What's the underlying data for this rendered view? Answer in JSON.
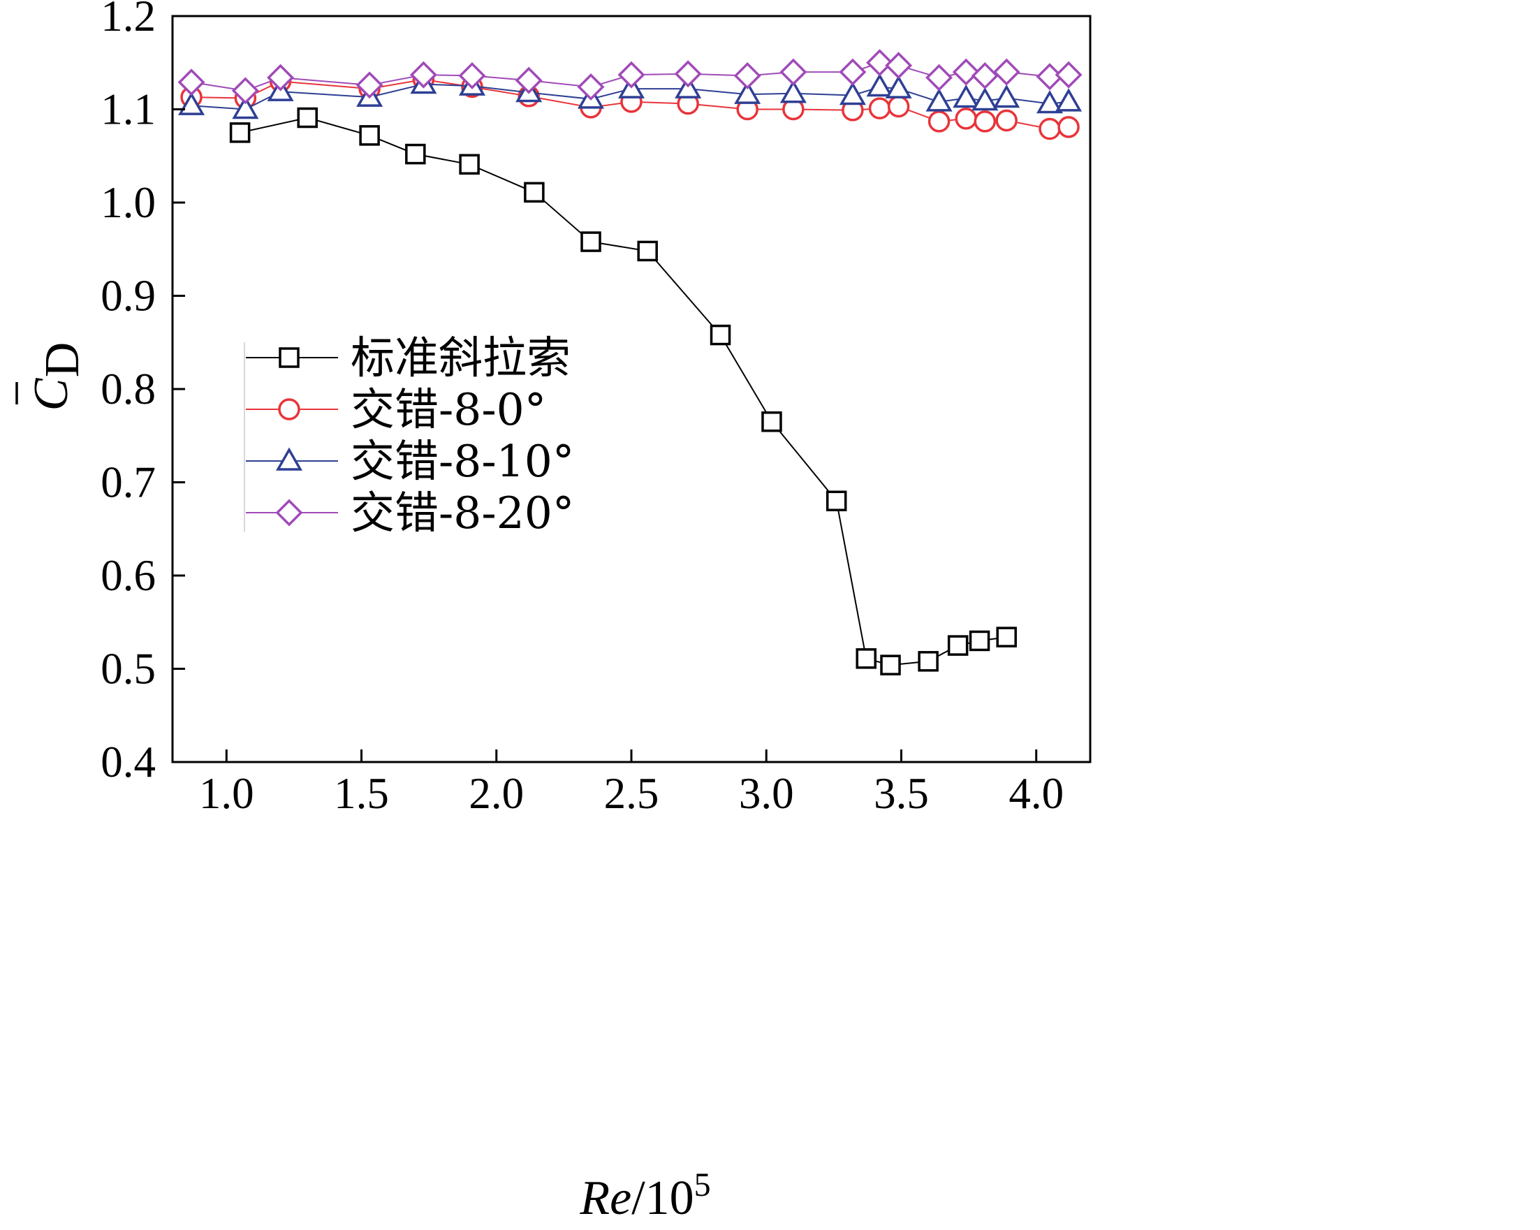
{
  "chart_data": {
    "type": "line",
    "xlabel": {
      "italic": "Re",
      "base": "/10",
      "sup": "5"
    },
    "ylabel": {
      "main": "C",
      "sub": "D"
    },
    "xlim": [
      0.8,
      4.2
    ],
    "ylim": [
      0.4,
      1.2
    ],
    "xticks": [
      1.0,
      1.5,
      2.0,
      2.5,
      3.0,
      3.5,
      4.0
    ],
    "xtick_labels": [
      "1.0",
      "1.5",
      "2.0",
      "2.5",
      "3.0",
      "3.5",
      "4.0"
    ],
    "yticks": [
      0.4,
      0.5,
      0.6,
      0.7,
      0.8,
      0.9,
      1.0,
      1.1,
      1.2
    ],
    "ytick_labels": [
      "0.4",
      "0.5",
      "0.6",
      "0.7",
      "0.8",
      "0.9",
      "1.0",
      "1.1",
      "1.2"
    ],
    "grid": false,
    "legend_position": "center-left",
    "series": [
      {
        "name": "标准斜拉索",
        "marker": "square",
        "color": "#000000",
        "x": [
          1.05,
          1.3,
          1.53,
          1.7,
          1.9,
          2.14,
          2.35,
          2.56,
          2.83,
          3.02,
          3.26,
          3.37,
          3.46,
          3.6,
          3.71,
          3.79,
          3.89
        ],
        "y": [
          1.075,
          1.091,
          1.072,
          1.052,
          1.041,
          1.011,
          0.958,
          0.948,
          0.858,
          0.765,
          0.68,
          0.511,
          0.504,
          0.508,
          0.525,
          0.53,
          0.534
        ]
      },
      {
        "name": "交错-8-0°",
        "marker": "circle",
        "color": "#e8343a",
        "x": [
          0.87,
          1.07,
          1.2,
          1.53,
          1.73,
          1.91,
          2.12,
          2.35,
          2.5,
          2.71,
          2.93,
          3.1,
          3.32,
          3.42,
          3.49,
          3.64,
          3.74,
          3.81,
          3.89,
          4.05,
          4.12
        ],
        "y": [
          1.113,
          1.112,
          1.13,
          1.122,
          1.132,
          1.124,
          1.114,
          1.102,
          1.108,
          1.106,
          1.1,
          1.1,
          1.099,
          1.101,
          1.103,
          1.087,
          1.09,
          1.087,
          1.088,
          1.079,
          1.081
        ]
      },
      {
        "name": "交错-8-10°",
        "marker": "triangle",
        "color": "#2e3f94",
        "x": [
          0.87,
          1.07,
          1.2,
          1.53,
          1.73,
          1.91,
          2.12,
          2.35,
          2.5,
          2.71,
          2.93,
          3.1,
          3.32,
          3.42,
          3.49,
          3.64,
          3.74,
          3.81,
          3.89,
          4.05,
          4.12
        ],
        "y": [
          1.104,
          1.1,
          1.119,
          1.113,
          1.127,
          1.125,
          1.118,
          1.111,
          1.122,
          1.122,
          1.116,
          1.117,
          1.115,
          1.124,
          1.122,
          1.108,
          1.112,
          1.109,
          1.112,
          1.106,
          1.108
        ]
      },
      {
        "name": "交错-8-20°",
        "marker": "diamond",
        "color": "#a04ab8",
        "x": [
          0.87,
          1.07,
          1.2,
          1.53,
          1.73,
          1.91,
          2.12,
          2.35,
          2.5,
          2.71,
          2.93,
          3.1,
          3.32,
          3.42,
          3.49,
          3.64,
          3.74,
          3.81,
          3.89,
          4.05,
          4.12
        ],
        "y": [
          1.129,
          1.12,
          1.134,
          1.126,
          1.137,
          1.136,
          1.131,
          1.124,
          1.137,
          1.138,
          1.136,
          1.14,
          1.14,
          1.15,
          1.147,
          1.134,
          1.14,
          1.136,
          1.14,
          1.135,
          1.137
        ]
      }
    ]
  }
}
